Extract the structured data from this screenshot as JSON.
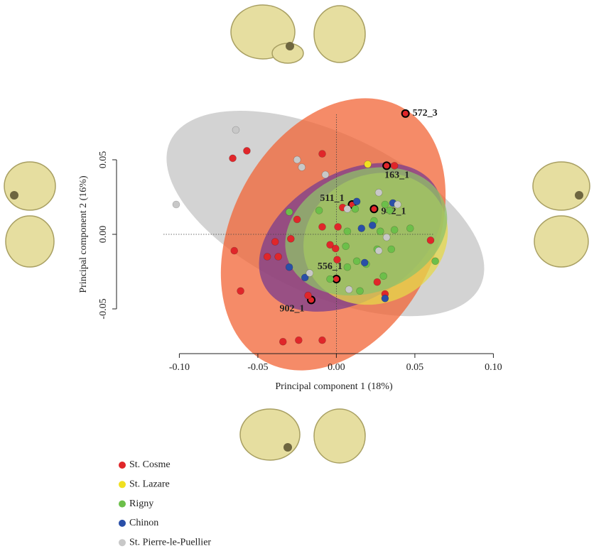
{
  "chart_data": {
    "type": "scatter",
    "x_label": "Principal component 1 (18%)",
    "y_label": "Principal component 2 (16%)",
    "xlim": [
      -0.14,
      0.12
    ],
    "ylim": [
      -0.08,
      0.09
    ],
    "xticks": [
      {
        "value": -0.1,
        "label": "-0.10"
      },
      {
        "value": -0.05,
        "label": "-0.05"
      },
      {
        "value": 0,
        "label": "0.00"
      },
      {
        "value": 0.05,
        "label": "0.05"
      },
      {
        "value": 0.1,
        "label": "0.10"
      }
    ],
    "yticks": [
      {
        "value": -0.05,
        "label": "-0.05"
      },
      {
        "value": 0,
        "label": "0.00"
      },
      {
        "value": 0.05,
        "label": "0.05"
      }
    ],
    "series": [
      {
        "name": "St. Cosme",
        "color": "#e0262a",
        "ellipse_color": "#f26436",
        "ellipse": {
          "center": [
            -0.002,
            0.0
          ],
          "radii": [
            0.092,
            0.068
          ],
          "angle": -62
        },
        "x": [
          0.044,
          0.032,
          0.01,
          0.024,
          0.0,
          -0.016,
          -0.066,
          -0.057,
          -0.009,
          0.037,
          0.004,
          -0.025,
          -0.009,
          0.001,
          -0.065,
          -0.039,
          -0.044,
          -0.037,
          -0.029,
          -0.004,
          -0.0005,
          0.0005,
          0.06,
          -0.061,
          -0.018,
          0.026,
          0.031,
          -0.034,
          -0.024,
          -0.009
        ],
        "y": [
          0.081,
          0.046,
          0.02,
          0.017,
          -0.03,
          -0.044,
          0.051,
          0.056,
          0.054,
          0.046,
          0.018,
          0.01,
          0.005,
          0.005,
          -0.011,
          -0.005,
          -0.015,
          -0.015,
          -0.003,
          -0.007,
          -0.0095,
          -0.017,
          -0.004,
          -0.038,
          -0.041,
          -0.032,
          -0.04,
          -0.072,
          -0.071,
          -0.071
        ],
        "point_labels": [
          "572_3",
          "163_1",
          "511_1",
          "942_1",
          "556_1",
          "902_1",
          null,
          null,
          null,
          null,
          null,
          null,
          null,
          null,
          null,
          null,
          null,
          null,
          null,
          null,
          null,
          null,
          null,
          null,
          null,
          null,
          null,
          null,
          null,
          null
        ]
      },
      {
        "name": "St. Lazare",
        "color": "#f0e020",
        "ellipse_color": "#e6d84a",
        "ellipse": {
          "center": [
            0.025,
            -0.003
          ],
          "radii": [
            0.047,
            0.043
          ],
          "angle": -25
        },
        "x": [
          0.02
        ],
        "y": [
          0.047
        ]
      },
      {
        "name": "Rigny",
        "color": "#6cbf4a",
        "ellipse_color": "#8dc26a",
        "ellipse": {
          "center": [
            0.019,
            0.002
          ],
          "radii": [
            0.053,
            0.041
          ],
          "angle": -20
        },
        "x": [
          -0.03,
          -0.011,
          0.012,
          0.031,
          0.034,
          0.024,
          0.028,
          0.037,
          0.047,
          0.035,
          0.026,
          0.006,
          0.013,
          0.019,
          0.03,
          0.063,
          -0.004,
          0.015,
          0.007,
          0.007
        ],
        "y": [
          0.015,
          0.016,
          0.017,
          0.02,
          0.016,
          0.009,
          0.002,
          0.003,
          0.004,
          -0.01,
          -0.01,
          -0.008,
          -0.018,
          -0.02,
          -0.028,
          -0.018,
          -0.03,
          -0.038,
          -0.022,
          0.002
        ]
      },
      {
        "name": "Chinon",
        "color": "#2a4fa8",
        "ellipse_color": "#7a3c8e",
        "ellipse": {
          "center": [
            0.009,
            -0.002
          ],
          "radii": [
            0.063,
            0.043
          ],
          "angle": -30
        },
        "x": [
          0.013,
          0.016,
          0.023,
          0.036,
          -0.03,
          -0.02,
          0.018,
          0.031
        ],
        "y": [
          0.022,
          0.004,
          0.006,
          0.021,
          -0.022,
          -0.029,
          -0.019,
          -0.043
        ]
      },
      {
        "name": "St. Pierre-le-Puellier",
        "color": "#c8c8c8",
        "ellipse_color": "#c4c4c4",
        "ellipse": {
          "center": [
            -0.007,
            0.014
          ],
          "radii": [
            0.109,
            0.054
          ],
          "angle": 25
        },
        "x": [
          -0.064,
          -0.025,
          -0.022,
          -0.007,
          -0.102,
          0.007,
          0.027,
          0.039,
          0.032,
          0.027,
          -0.017,
          0.008
        ],
        "y": [
          0.07,
          0.05,
          0.045,
          0.04,
          0.02,
          0.017,
          0.028,
          0.02,
          -0.002,
          -0.011,
          -0.026,
          -0.037
        ]
      }
    ]
  }
}
